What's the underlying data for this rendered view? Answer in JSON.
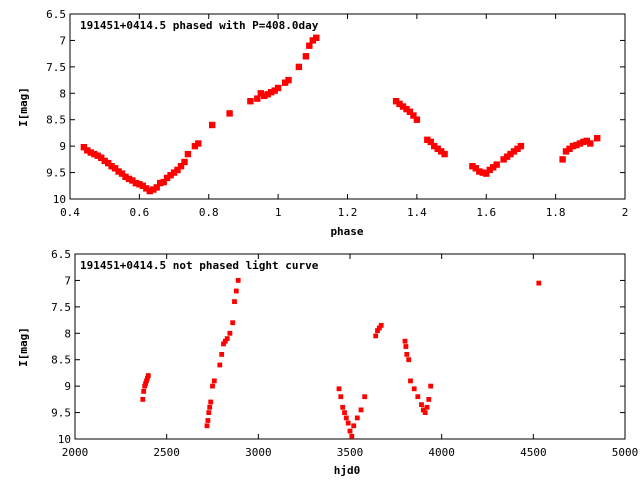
{
  "chart_data": [
    {
      "type": "scatter",
      "title": "191451+0414.5 phased with P=408.0day",
      "xlabel": "phase",
      "ylabel": "I[mag]",
      "xlim": [
        0.4,
        2.0
      ],
      "ylim": [
        6.5,
        10.0
      ],
      "y_inverted": true,
      "xticks": [
        0.4,
        0.6,
        0.8,
        1.0,
        1.2,
        1.4,
        1.6,
        1.8,
        2.0
      ],
      "xtick_labels": [
        "0.4",
        "0.6",
        "0.8",
        "1",
        "1.2",
        "1.4",
        "1.6",
        "1.8",
        "2"
      ],
      "yticks": [
        6.5,
        7.0,
        7.5,
        8.0,
        8.5,
        9.0,
        9.5,
        10.0
      ],
      "ytick_labels": [
        "6.5",
        "7",
        "7.5",
        "8",
        "8.5",
        "9",
        "9.5",
        "10"
      ],
      "marker_color": "#ff0000",
      "grid": false,
      "series": [
        {
          "x": [
            0.44,
            0.45,
            0.46,
            0.47,
            0.48,
            0.49,
            0.5,
            0.51,
            0.52,
            0.53,
            0.54,
            0.55,
            0.56,
            0.57,
            0.58,
            0.59,
            0.6,
            0.61,
            0.62,
            0.63,
            0.64,
            0.65,
            0.66,
            0.67,
            0.68,
            0.69,
            0.7,
            0.71,
            0.72,
            0.73,
            0.74,
            0.76,
            0.77,
            0.81,
            0.86,
            0.92,
            0.94,
            0.95,
            0.96,
            0.97,
            0.98,
            0.99,
            1.0,
            1.02,
            1.03,
            1.06,
            1.08,
            1.09,
            1.1,
            1.11,
            1.34,
            1.35,
            1.36,
            1.37,
            1.38,
            1.39,
            1.4,
            1.43,
            1.44,
            1.45,
            1.46,
            1.47,
            1.48,
            1.56,
            1.57,
            1.58,
            1.59,
            1.6,
            1.61,
            1.62,
            1.63,
            1.65,
            1.66,
            1.67,
            1.68,
            1.69,
            1.7,
            1.82,
            1.83,
            1.84,
            1.85,
            1.86,
            1.87,
            1.88,
            1.89,
            1.9,
            1.92
          ],
          "y": [
            9.02,
            9.08,
            9.12,
            9.15,
            9.18,
            9.22,
            9.28,
            9.32,
            9.38,
            9.42,
            9.48,
            9.52,
            9.58,
            9.62,
            9.65,
            9.7,
            9.72,
            9.75,
            9.8,
            9.85,
            9.82,
            9.78,
            9.7,
            9.68,
            9.6,
            9.55,
            9.5,
            9.45,
            9.38,
            9.3,
            9.15,
            9.0,
            8.95,
            8.6,
            8.38,
            8.15,
            8.1,
            8.0,
            8.05,
            8.02,
            7.98,
            7.95,
            7.9,
            7.8,
            7.75,
            7.5,
            7.3,
            7.1,
            7.0,
            6.95,
            8.15,
            8.2,
            8.25,
            8.3,
            8.35,
            8.42,
            8.5,
            8.88,
            8.92,
            9.0,
            9.05,
            9.1,
            9.15,
            9.38,
            9.42,
            9.48,
            9.5,
            9.52,
            9.45,
            9.4,
            9.35,
            9.25,
            9.2,
            9.15,
            9.1,
            9.05,
            9.0,
            9.25,
            9.1,
            9.05,
            9.0,
            8.98,
            8.95,
            8.92,
            8.9,
            8.95,
            8.85
          ]
        }
      ]
    },
    {
      "type": "scatter",
      "title": "191451+0414.5 not phased light curve",
      "xlabel": "hjd0",
      "ylabel": "I[mag]",
      "xlim": [
        2000,
        5000
      ],
      "ylim": [
        6.5,
        10.0
      ],
      "y_inverted": true,
      "xticks": [
        2000,
        2500,
        3000,
        3500,
        4000,
        4500,
        5000
      ],
      "xtick_labels": [
        "2000",
        "2500",
        "3000",
        "3500",
        "4000",
        "4500",
        "5000"
      ],
      "yticks": [
        6.5,
        7.0,
        7.5,
        8.0,
        8.5,
        9.0,
        9.5,
        10.0
      ],
      "ytick_labels": [
        "6.5",
        "7",
        "7.5",
        "8",
        "8.5",
        "9",
        "9.5",
        "10"
      ],
      "marker_color": "#ff0000",
      "grid": false,
      "series": [
        {
          "x": [
            2370,
            2375,
            2380,
            2385,
            2390,
            2395,
            2400,
            2720,
            2725,
            2730,
            2735,
            2740,
            2750,
            2760,
            2790,
            2800,
            2810,
            2820,
            2830,
            2845,
            2860,
            2870,
            2880,
            2890,
            3440,
            3450,
            3460,
            3470,
            3480,
            3490,
            3500,
            3510,
            3520,
            3540,
            3560,
            3580,
            3640,
            3650,
            3660,
            3670,
            3800,
            3805,
            3810,
            3820,
            3830,
            3850,
            3870,
            3890,
            3900,
            3910,
            3920,
            3930,
            3940,
            4530
          ],
          "y": [
            9.25,
            9.1,
            9.0,
            8.95,
            8.9,
            8.85,
            8.8,
            9.75,
            9.65,
            9.5,
            9.4,
            9.3,
            9.0,
            8.9,
            8.6,
            8.4,
            8.2,
            8.15,
            8.1,
            8.0,
            7.8,
            7.4,
            7.2,
            7.0,
            9.05,
            9.2,
            9.4,
            9.5,
            9.6,
            9.7,
            9.85,
            9.95,
            9.75,
            9.6,
            9.45,
            9.2,
            8.05,
            7.95,
            7.9,
            7.85,
            8.15,
            8.25,
            8.4,
            8.5,
            8.9,
            9.05,
            9.2,
            9.35,
            9.45,
            9.5,
            9.4,
            9.25,
            9.0,
            7.05
          ]
        }
      ]
    }
  ]
}
